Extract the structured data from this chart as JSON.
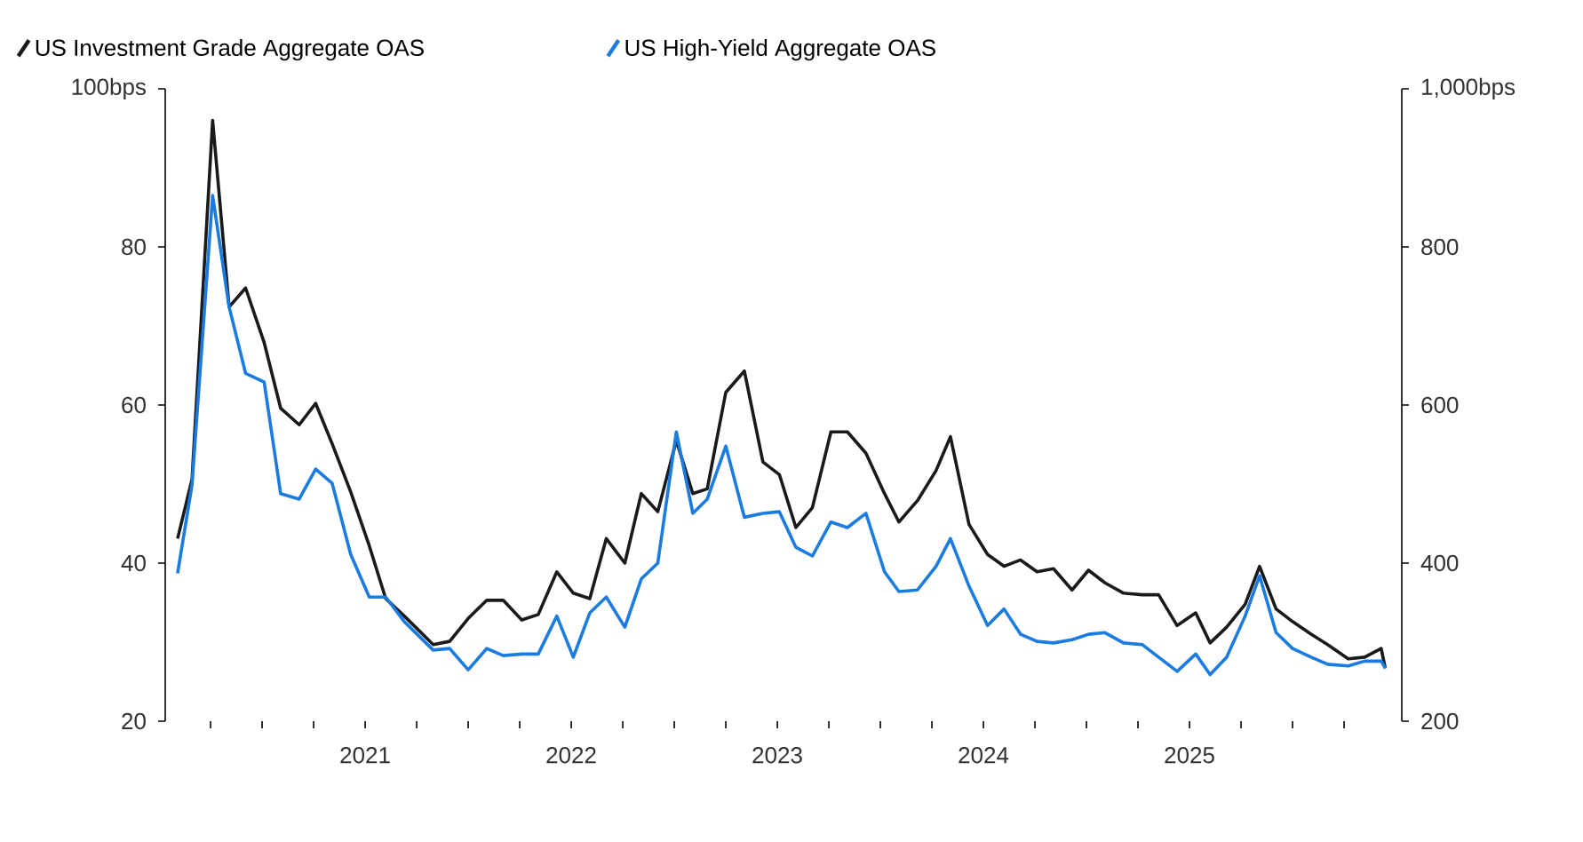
{
  "chart_data": {
    "type": "line",
    "x": [
      2020.09,
      2020.16,
      2020.26,
      2020.34,
      2020.42,
      2020.51,
      2020.59,
      2020.68,
      2020.76,
      2020.84,
      2020.93,
      2021.02,
      2021.1,
      2021.19,
      2021.33,
      2021.41,
      2021.5,
      2021.59,
      2021.67,
      2021.76,
      2021.84,
      2021.93,
      2022.01,
      2022.09,
      2022.17,
      2022.26,
      2022.34,
      2022.42,
      2022.51,
      2022.59,
      2022.66,
      2022.75,
      2022.84,
      2022.93,
      2023.01,
      2023.09,
      2023.17,
      2023.26,
      2023.34,
      2023.43,
      2023.52,
      2023.59,
      2023.68,
      2023.77,
      2023.84,
      2023.93,
      2024.02,
      2024.1,
      2024.18,
      2024.26,
      2024.34,
      2024.43,
      2024.51,
      2024.59,
      2024.68,
      2024.77,
      2024.85,
      2024.94,
      2025.03,
      2025.1,
      2025.18,
      2025.27,
      2025.34,
      2025.42,
      2025.5,
      2025.59,
      2025.67,
      2025.77,
      2025.85,
      2025.93,
      2025.95
    ],
    "series": [
      {
        "name": "US Investment Grade Aggregate OAS",
        "color": "#1a1a1a",
        "values": [
          43.1,
          50.6,
          96,
          72.4,
          74.8,
          67.9,
          59.6,
          57.5,
          60.2,
          55.1,
          49.0,
          42.2,
          35.5,
          33.3,
          29.7,
          30.1,
          33.0,
          35.3,
          35.3,
          32.8,
          33.5,
          38.9,
          36.2,
          35.5,
          43.1,
          40.0,
          48.8,
          46.5,
          55.5,
          48.8,
          49.4,
          61.6,
          64.3,
          52.8,
          51.2,
          44.5,
          47.0,
          56.6,
          56.6,
          53.9,
          48.8,
          45.2,
          47.9,
          51.7,
          56.0,
          44.9,
          41.1,
          39.6,
          40.4,
          38.9,
          39.3,
          36.6,
          39.1,
          37.5,
          36.2,
          36.0,
          36.0,
          32.1,
          33.7,
          29.9,
          31.9,
          34.8,
          39.6,
          34.2,
          32.6,
          31.0,
          29.7,
          27.9,
          28.1,
          29.2,
          26.7
        ]
      },
      {
        "name": "US High-Yield Aggregate OAS",
        "color": "#1a7be0",
        "axis": "y2",
        "values": [
          387,
          499,
          865,
          724,
          640,
          629,
          488,
          481,
          519,
          501,
          411,
          357,
          357,
          326,
          290,
          292,
          265,
          292,
          283,
          285,
          285,
          333,
          281,
          337,
          357,
          319,
          380,
          400,
          566,
          463,
          481,
          548,
          458,
          463,
          465,
          420,
          409,
          452,
          445,
          463,
          389,
          364,
          366,
          396,
          431,
          371,
          321,
          342,
          310,
          301,
          299,
          303,
          310,
          312,
          299,
          297,
          281,
          263,
          285,
          259,
          281,
          333,
          384,
          312,
          292,
          281,
          272,
          270,
          276,
          276,
          267
        ]
      }
    ],
    "xlim": [
      2020.03,
      2026.03
    ],
    "xticks": [
      {
        "value": 2020.25,
        "label": null
      },
      {
        "value": 2020.5,
        "label": null
      },
      {
        "value": 2020.75,
        "label": null
      },
      2021,
      {
        "value": 2021.25,
        "label": null
      },
      {
        "value": 2021.5,
        "label": null
      },
      {
        "value": 2021.75,
        "label": null
      },
      2022,
      {
        "value": 2022.25,
        "label": null
      },
      {
        "value": 2022.5,
        "label": null
      },
      {
        "value": 2022.75,
        "label": null
      },
      2023,
      {
        "value": 2023.25,
        "label": null
      },
      {
        "value": 2023.5,
        "label": null
      },
      {
        "value": 2023.75,
        "label": null
      },
      2024,
      {
        "value": 2024.25,
        "label": null
      },
      {
        "value": 2024.5,
        "label": null
      },
      {
        "value": 2024.75,
        "label": null
      },
      2025,
      {
        "value": 2025.25,
        "label": null
      },
      {
        "value": 2025.5,
        "label": null
      },
      {
        "value": 2025.75,
        "label": null
      }
    ],
    "ylim": [
      20,
      100
    ],
    "yticks": [
      20,
      40,
      60,
      80,
      {
        "value": 100,
        "label": "100bps"
      }
    ],
    "y2lim": [
      200,
      1000
    ],
    "y2ticks": [
      200,
      400,
      600,
      800,
      {
        "value": 1000,
        "label": "1,000bps"
      }
    ],
    "legend": "top",
    "grid": false,
    "marker": "none",
    "line_style": "solid"
  }
}
